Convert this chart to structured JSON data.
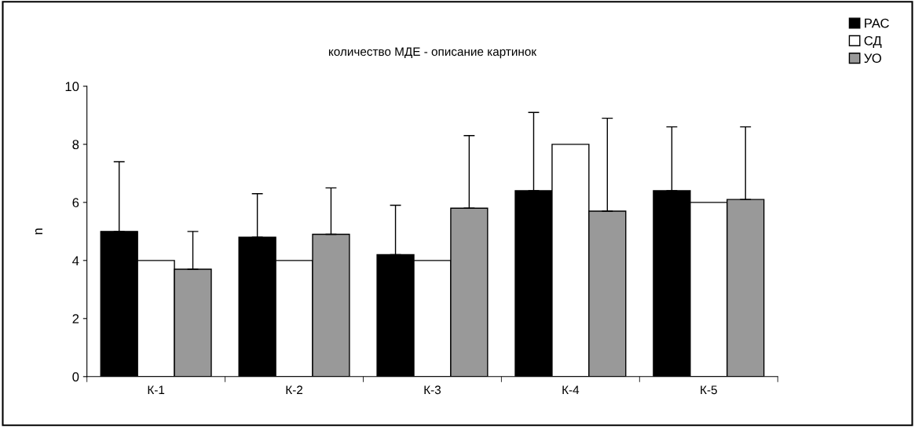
{
  "chart_data": {
    "type": "bar",
    "title": "количество МДЕ - описание картинок",
    "ylabel": "n",
    "categories": [
      "К-1",
      "К-2",
      "К-3",
      "К-4",
      "К-5"
    ],
    "series": [
      {
        "name": "РАС",
        "color": "#000000",
        "values": [
          5.0,
          4.8,
          4.2,
          6.4,
          6.4
        ],
        "errors": [
          [
            5.0,
            7.4
          ],
          [
            4.8,
            6.3
          ],
          [
            4.2,
            5.9
          ],
          [
            6.4,
            9.1
          ],
          [
            6.4,
            8.6
          ]
        ]
      },
      {
        "name": "СД",
        "color": "#ffffff",
        "values": [
          4.0,
          4.0,
          4.0,
          8.0,
          6.0
        ]
      },
      {
        "name": "УО",
        "color": "#999999",
        "values": [
          3.7,
          4.9,
          5.8,
          5.7,
          6.1
        ],
        "errors": [
          [
            3.7,
            5.0
          ],
          [
            4.9,
            6.5
          ],
          [
            5.8,
            8.3
          ],
          [
            5.7,
            8.9
          ],
          [
            6.1,
            8.6
          ]
        ]
      }
    ],
    "ylim": [
      0,
      10
    ],
    "yticks": [
      0,
      2,
      4,
      6,
      8,
      10
    ],
    "grid": false,
    "legend": "top right"
  }
}
